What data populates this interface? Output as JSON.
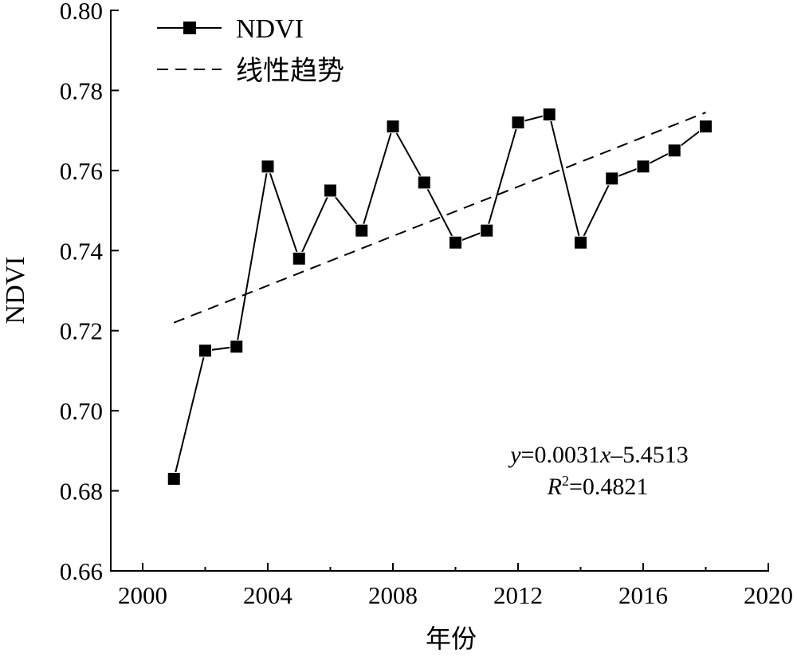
{
  "chart_data": {
    "type": "line",
    "title": "",
    "xlabel": "年份",
    "ylabel": "NDVI",
    "xlim": [
      2000,
      2020
    ],
    "ylim": [
      0.66,
      0.8
    ],
    "xticks": [
      2000,
      2004,
      2008,
      2012,
      2016,
      2020
    ],
    "xtick_labels": [
      "2000",
      "2004",
      "2008",
      "2012",
      "2016",
      "2020"
    ],
    "xminor_ticks": [
      2002,
      2006,
      2010,
      2014,
      2018
    ],
    "yticks": [
      0.66,
      0.68,
      0.7,
      0.72,
      0.74,
      0.76,
      0.78,
      0.8
    ],
    "ytick_labels": [
      "0.66",
      "0.68",
      "0.70",
      "0.72",
      "0.74",
      "0.76",
      "0.78",
      "0.80"
    ],
    "grid": false,
    "legend_position": "top-left",
    "series": [
      {
        "name": "NDVI",
        "style": "solid line with square markers",
        "x": [
          2001,
          2002,
          2003,
          2004,
          2005,
          2006,
          2007,
          2008,
          2009,
          2010,
          2011,
          2012,
          2013,
          2014,
          2015,
          2016,
          2017,
          2018
        ],
        "values": [
          0.683,
          0.715,
          0.716,
          0.761,
          0.738,
          0.755,
          0.745,
          0.771,
          0.757,
          0.742,
          0.745,
          0.772,
          0.774,
          0.742,
          0.758,
          0.761,
          0.765,
          0.771
        ]
      },
      {
        "name": "线性趋势",
        "style": "dashed",
        "x": [
          2001,
          2018
        ],
        "values": [
          0.722,
          0.7745
        ]
      }
    ],
    "annotations": {
      "equation": {
        "y": "y",
        "eq": "=0.0031",
        "x": "x",
        "rest": "–5.4513"
      },
      "r2": {
        "r": "R",
        "sup": "2",
        "rest": "=0.4821"
      }
    },
    "colors": {
      "line": "#000000",
      "background": "#ffffff"
    }
  }
}
